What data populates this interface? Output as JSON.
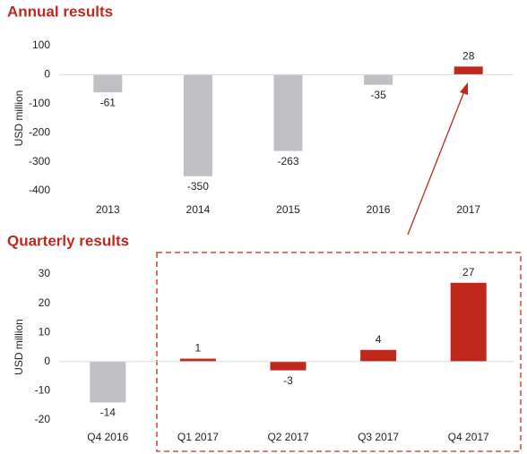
{
  "chart_data": [
    {
      "type": "bar",
      "title": "Annual results",
      "y_label": "USD million",
      "categories": [
        "2013",
        "2014",
        "2015",
        "2016",
        "2017"
      ],
      "values": [
        -61,
        -350,
        -263,
        -35,
        28
      ],
      "colors": [
        "#c0bfc4",
        "#c0bfc4",
        "#c0bfc4",
        "#c0bfc4",
        "#c0281c"
      ],
      "ylim": [
        -400,
        100
      ],
      "yticks": [
        -400,
        -300,
        -200,
        -100,
        0,
        100
      ]
    },
    {
      "type": "bar",
      "title": "Quarterly results",
      "y_label": "USD million",
      "categories": [
        "Q4 2016",
        "Q1 2017",
        "Q2 2017",
        "Q3 2017",
        "Q4 2017"
      ],
      "values": [
        -14,
        1,
        -3,
        4,
        27
      ],
      "colors": [
        "#c0bfc4",
        "#c0281c",
        "#c0281c",
        "#c0281c",
        "#c0281c"
      ],
      "ylim": [
        -20,
        30
      ],
      "yticks": [
        -20,
        -10,
        0,
        10,
        20,
        30
      ]
    }
  ]
}
